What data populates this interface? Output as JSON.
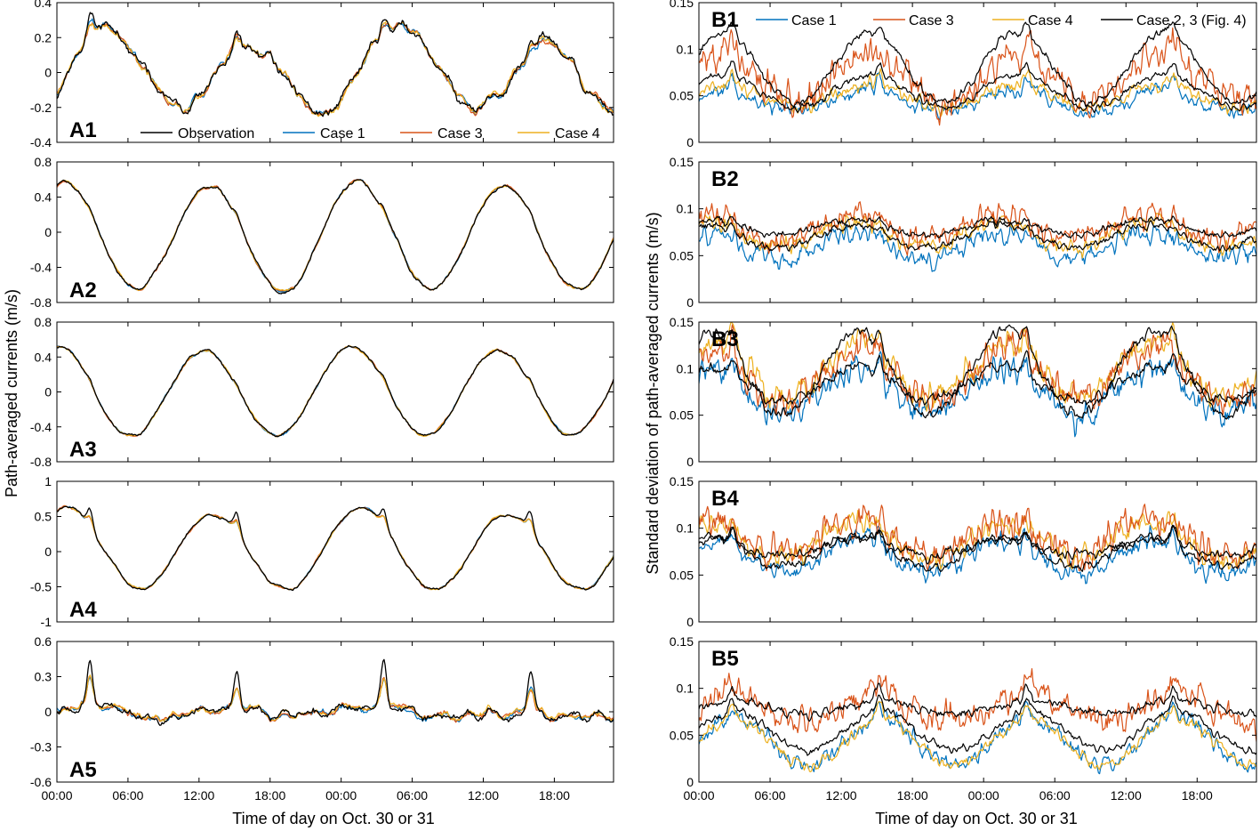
{
  "colors": {
    "observation": "#000000",
    "case1": "#0072bd",
    "case3": "#d95319",
    "case4": "#edb120",
    "case23": "#000000"
  },
  "chart_data": [
    {
      "id": "A1",
      "type": "line",
      "panel_label": "A1",
      "ylim": [
        -0.4,
        0.4
      ],
      "yticks": [
        -0.4,
        -0.2,
        0,
        0.2,
        0.4
      ],
      "ytick_labels": [
        "-0.4",
        "-0.2",
        "0",
        "0.2",
        "0.4"
      ],
      "x_range_hours": [
        0,
        47
      ],
      "legend": [
        "Observation",
        "Case 1",
        "Case 3",
        "Case 4"
      ],
      "legend_position": "bottom",
      "signal": {
        "semi": 0.22,
        "semi_phase": 4.0,
        "diurnal": 0.06,
        "diurnal_phase": 6.0,
        "noise": 0.05,
        "spike": 0.1,
        "offset": 0.0,
        "seed": 11
      },
      "series": [
        {
          "name": "Observation",
          "color_key": "observation",
          "noise_scale": 1.2
        },
        {
          "name": "Case 1",
          "color_key": "case1",
          "noise_scale": 0.8
        },
        {
          "name": "Case 3",
          "color_key": "case3",
          "noise_scale": 0.8
        },
        {
          "name": "Case 4",
          "color_key": "case4",
          "noise_scale": 0.7
        }
      ]
    },
    {
      "id": "A2",
      "type": "line",
      "panel_label": "A2",
      "ylim": [
        -0.8,
        0.8
      ],
      "yticks": [
        -0.8,
        -0.4,
        0,
        0.4,
        0.8
      ],
      "ytick_labels": [
        "-0.8",
        "-0.4",
        "0",
        "0.4",
        "0.8"
      ],
      "x_range_hours": [
        0,
        47
      ],
      "signal": {
        "semi": 0.6,
        "semi_phase": 0.5,
        "diurnal": 0.03,
        "diurnal_phase": 3.0,
        "noise": 0.035,
        "spike": 0.05,
        "offset": -0.05,
        "seed": 22
      },
      "series": [
        {
          "name": "Observation",
          "color_key": "observation",
          "noise_scale": 1.2
        },
        {
          "name": "Case 1",
          "color_key": "case1",
          "noise_scale": 0.8
        },
        {
          "name": "Case 3",
          "color_key": "case3",
          "noise_scale": 0.8
        },
        {
          "name": "Case 4",
          "color_key": "case4",
          "noise_scale": 0.7
        }
      ]
    },
    {
      "id": "A3",
      "type": "line",
      "panel_label": "A3",
      "ylim": [
        -0.8,
        0.8
      ],
      "yticks": [
        -0.8,
        -0.4,
        0,
        0.4,
        0.8
      ],
      "ytick_labels": [
        "-0.8",
        "-0.4",
        "0",
        "0.4",
        "0.8"
      ],
      "x_range_hours": [
        0,
        47
      ],
      "signal": {
        "semi": 0.5,
        "semi_phase": 0.0,
        "diurnal": 0.03,
        "diurnal_phase": 1.0,
        "noise": 0.03,
        "spike": 0.05,
        "offset": 0.0,
        "seed": 33
      },
      "series": [
        {
          "name": "Observation",
          "color_key": "observation",
          "noise_scale": 1.2
        },
        {
          "name": "Case 1",
          "color_key": "case1",
          "noise_scale": 0.8
        },
        {
          "name": "Case 3",
          "color_key": "case3",
          "noise_scale": 0.8
        },
        {
          "name": "Case 4",
          "color_key": "case4",
          "noise_scale": 0.7
        }
      ]
    },
    {
      "id": "A4",
      "type": "line",
      "panel_label": "A4",
      "ylim": [
        -1,
        1
      ],
      "yticks": [
        -1,
        -0.5,
        0,
        0.5,
        1
      ],
      "ytick_labels": [
        "-1",
        "-0.5",
        "0",
        "0.5",
        "1"
      ],
      "x_range_hours": [
        0,
        47
      ],
      "signal": {
        "semi": 0.56,
        "semi_phase": 0.8,
        "diurnal": 0.05,
        "diurnal_phase": 2.0,
        "noise": 0.035,
        "spike": 0.25,
        "offset": 0.02,
        "seed": 44
      },
      "series": [
        {
          "name": "Observation",
          "color_key": "observation",
          "noise_scale": 1.2
        },
        {
          "name": "Case 1",
          "color_key": "case1",
          "noise_scale": 0.8
        },
        {
          "name": "Case 3",
          "color_key": "case3",
          "noise_scale": 0.8
        },
        {
          "name": "Case 4",
          "color_key": "case4",
          "noise_scale": 0.7
        }
      ]
    },
    {
      "id": "A5",
      "type": "line",
      "panel_label": "A5",
      "ylim": [
        -0.6,
        0.6
      ],
      "yticks": [
        -0.6,
        -0.3,
        0,
        0.3,
        0.6
      ],
      "ytick_labels": [
        "-0.6",
        "-0.3",
        "0",
        "0.3",
        "0.6"
      ],
      "x_range_hours": [
        0,
        47
      ],
      "signal": {
        "semi": 0.04,
        "semi_phase": 2.0,
        "diurnal": 0.02,
        "diurnal_phase": 4.0,
        "noise": 0.06,
        "spike": 0.35,
        "offset": 0.0,
        "seed": 55
      },
      "series": [
        {
          "name": "Observation",
          "color_key": "observation",
          "noise_scale": 1.3
        },
        {
          "name": "Case 1",
          "color_key": "case1",
          "noise_scale": 0.8
        },
        {
          "name": "Case 3",
          "color_key": "case3",
          "noise_scale": 0.8
        },
        {
          "name": "Case 4",
          "color_key": "case4",
          "noise_scale": 0.7
        }
      ]
    },
    {
      "id": "B1",
      "type": "line",
      "panel_label": "B1",
      "ylim": [
        0,
        0.15
      ],
      "yticks": [
        0,
        0.05,
        0.1,
        0.15
      ],
      "ytick_labels": [
        "0",
        "0.05",
        "0.1",
        "0.15"
      ],
      "x_range_hours": [
        0,
        47
      ],
      "legend": [
        "Case 1",
        "Case 3",
        "Case 4",
        "Case 2, 3 (Fig. 4)"
      ],
      "legend_position": "top",
      "signal": {
        "base": 0.045,
        "amp": 0.02,
        "phase": 2.0,
        "noise": 0.006,
        "spike": 0.02,
        "seed": 66
      },
      "series": [
        {
          "name": "Case 1",
          "color_key": "case1",
          "level": 0.0,
          "amp_scale": 0.6,
          "noise_scale": 1.0
        },
        {
          "name": "Case 3",
          "color_key": "case3",
          "level": 0.025,
          "amp_scale": 1.3,
          "noise_scale": 2.6
        },
        {
          "name": "Case 4",
          "color_key": "case4",
          "level": 0.005,
          "amp_scale": 0.6,
          "noise_scale": 1.0
        },
        {
          "name": "Case 2, 3 (Fig. 4)",
          "color_key": "case23",
          "level": 0.035,
          "amp_scale": 1.9,
          "noise_scale": 0.5
        },
        {
          "name": "Case 2, 3 (Fig. 4) low",
          "color_key": "case23",
          "level": 0.01,
          "amp_scale": 0.9,
          "noise_scale": 0.5
        }
      ]
    },
    {
      "id": "B2",
      "type": "line",
      "panel_label": "B2",
      "ylim": [
        0,
        0.15
      ],
      "yticks": [
        0,
        0.05,
        0.1,
        0.15
      ],
      "ytick_labels": [
        "0",
        "0.05",
        "0.1",
        "0.15"
      ],
      "x_range_hours": [
        0,
        47
      ],
      "signal": {
        "base": 0.068,
        "amp": 0.014,
        "phase": 0.5,
        "noise": 0.006,
        "spike": 0.01,
        "seed": 77
      },
      "series": [
        {
          "name": "Case 1",
          "color_key": "case1",
          "level": -0.008,
          "amp_scale": 1.0,
          "noise_scale": 1.5
        },
        {
          "name": "Case 3",
          "color_key": "case3",
          "level": 0.012,
          "amp_scale": 1.0,
          "noise_scale": 1.8
        },
        {
          "name": "Case 4",
          "color_key": "case4",
          "level": 0.004,
          "amp_scale": 1.0,
          "noise_scale": 1.3
        },
        {
          "name": "Case 2, 3 (Fig. 4)",
          "color_key": "case23",
          "level": 0.012,
          "amp_scale": 0.6,
          "noise_scale": 0.5
        },
        {
          "name": "Case 2, 3 (Fig. 4) low",
          "color_key": "case23",
          "level": 0.002,
          "amp_scale": 0.9,
          "noise_scale": 0.5
        }
      ]
    },
    {
      "id": "B3",
      "type": "line",
      "panel_label": "B3",
      "ylim": [
        0,
        0.15
      ],
      "yticks": [
        0,
        0.05,
        0.1,
        0.15
      ],
      "ytick_labels": [
        "0",
        "0.05",
        "0.1",
        "0.15"
      ],
      "x_range_hours": [
        0,
        47
      ],
      "signal": {
        "base": 0.085,
        "amp": 0.025,
        "phase": 1.0,
        "noise": 0.008,
        "spike": 0.03,
        "seed": 88
      },
      "series": [
        {
          "name": "Case 1",
          "color_key": "case1",
          "level": -0.01,
          "amp_scale": 1.0,
          "noise_scale": 1.6
        },
        {
          "name": "Case 3",
          "color_key": "case3",
          "level": 0.008,
          "amp_scale": 1.1,
          "noise_scale": 1.8
        },
        {
          "name": "Case 4",
          "color_key": "case4",
          "level": 0.012,
          "amp_scale": 1.2,
          "noise_scale": 1.5
        },
        {
          "name": "Case 2, 3 (Fig. 4)",
          "color_key": "case23",
          "level": 0.01,
          "amp_scale": 1.8,
          "noise_scale": 0.6
        },
        {
          "name": "Case 2, 3 (Fig. 4) low",
          "color_key": "case23",
          "level": -0.002,
          "amp_scale": 0.7,
          "noise_scale": 0.5
        }
      ]
    },
    {
      "id": "B4",
      "type": "line",
      "panel_label": "B4",
      "ylim": [
        0,
        0.15
      ],
      "yticks": [
        0,
        0.05,
        0.1,
        0.15
      ],
      "ytick_labels": [
        "0",
        "0.05",
        "0.1",
        "0.15"
      ],
      "x_range_hours": [
        0,
        47
      ],
      "signal": {
        "base": 0.075,
        "amp": 0.018,
        "phase": 0.8,
        "noise": 0.007,
        "spike": 0.02,
        "seed": 99
      },
      "series": [
        {
          "name": "Case 1",
          "color_key": "case1",
          "level": -0.005,
          "amp_scale": 1.0,
          "noise_scale": 1.3
        },
        {
          "name": "Case 3",
          "color_key": "case3",
          "level": 0.015,
          "amp_scale": 1.1,
          "noise_scale": 2.0
        },
        {
          "name": "Case 4",
          "color_key": "case4",
          "level": 0.01,
          "amp_scale": 1.1,
          "noise_scale": 1.5
        },
        {
          "name": "Case 2, 3 (Fig. 4)",
          "color_key": "case23",
          "level": 0.005,
          "amp_scale": 0.5,
          "noise_scale": 0.5
        },
        {
          "name": "Case 2, 3 (Fig. 4) low",
          "color_key": "case23",
          "level": 0.0,
          "amp_scale": 0.9,
          "noise_scale": 0.5
        }
      ]
    },
    {
      "id": "B5",
      "type": "line",
      "panel_label": "B5",
      "ylim": [
        0,
        0.15
      ],
      "yticks": [
        0,
        0.05,
        0.1,
        0.15
      ],
      "ytick_labels": [
        "0",
        "0.05",
        "0.1",
        "0.15"
      ],
      "x_range_hours": [
        0,
        47
      ],
      "signal": {
        "base": 0.055,
        "amp": 0.025,
        "phase": 3.0,
        "noise": 0.006,
        "spike": 0.02,
        "seed": 111
      },
      "series": [
        {
          "name": "Case 1",
          "color_key": "case1",
          "level": -0.012,
          "amp_scale": 1.0,
          "noise_scale": 1.2
        },
        {
          "name": "Case 3",
          "color_key": "case3",
          "level": 0.025,
          "amp_scale": 0.6,
          "noise_scale": 2.2
        },
        {
          "name": "Case 4",
          "color_key": "case4",
          "level": -0.012,
          "amp_scale": 1.0,
          "noise_scale": 0.8
        },
        {
          "name": "Case 2, 3 (Fig. 4)",
          "color_key": "case23",
          "level": 0.025,
          "amp_scale": 0.3,
          "noise_scale": 0.6
        },
        {
          "name": "Case 2, 3 (Fig. 4) low",
          "color_key": "case23",
          "level": 0.0,
          "amp_scale": 0.8,
          "noise_scale": 0.5
        }
      ]
    }
  ],
  "x_axis": {
    "tick_hours": [
      0,
      6,
      12,
      18,
      24,
      30,
      36,
      42
    ],
    "tick_labels": [
      "00:00",
      "06:00",
      "12:00",
      "18:00",
      "00:00",
      "06:00",
      "12:00",
      "18:00"
    ],
    "label": "Time of day on Oct. 30 or 31"
  },
  "left_ylabel": "Path-averaged currents (m/s)",
  "right_ylabel": "Standard deviation of path-averaged currents (m/s)"
}
